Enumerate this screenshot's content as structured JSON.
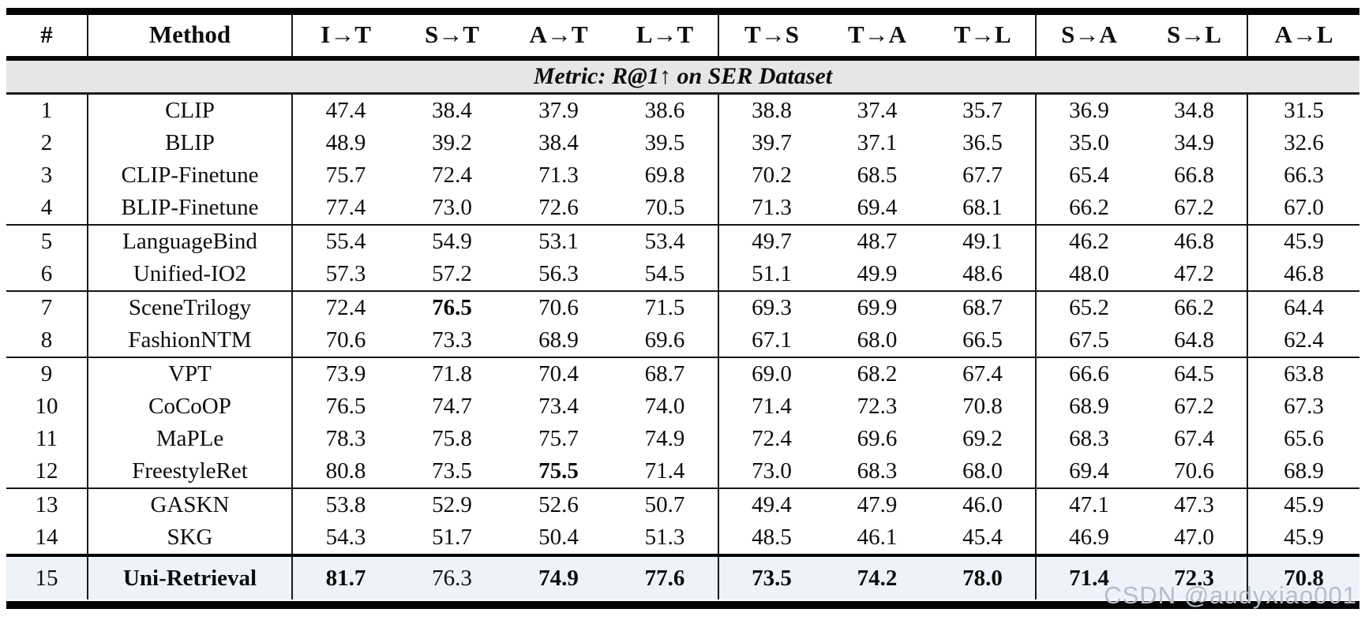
{
  "table": {
    "columns": [
      "#",
      "Method",
      "I→T",
      "S→T",
      "A→T",
      "L→T",
      "T→S",
      "T→A",
      "T→L",
      "S→A",
      "S→L",
      "A→L"
    ],
    "metric_caption": "Metric: R@1↑ on SER Dataset",
    "rows": [
      {
        "num": "1",
        "method": "CLIP",
        "values": [
          "47.4",
          "38.4",
          "37.9",
          "38.6",
          "38.8",
          "37.4",
          "35.7",
          "36.9",
          "34.8",
          "31.5"
        ],
        "bold_values": [],
        "method_bold": false,
        "sep_after": "none",
        "highlight": false
      },
      {
        "num": "2",
        "method": "BLIP",
        "values": [
          "48.9",
          "39.2",
          "38.4",
          "39.5",
          "39.7",
          "37.1",
          "36.5",
          "35.0",
          "34.9",
          "32.6"
        ],
        "bold_values": [],
        "method_bold": false,
        "sep_after": "none",
        "highlight": false
      },
      {
        "num": "3",
        "method": "CLIP-Finetune",
        "values": [
          "75.7",
          "72.4",
          "71.3",
          "69.8",
          "70.2",
          "68.5",
          "67.7",
          "65.4",
          "66.8",
          "66.3"
        ],
        "bold_values": [],
        "method_bold": false,
        "sep_after": "none",
        "highlight": false
      },
      {
        "num": "4",
        "method": "BLIP-Finetune",
        "values": [
          "77.4",
          "73.0",
          "72.6",
          "70.5",
          "71.3",
          "69.4",
          "68.1",
          "66.2",
          "67.2",
          "67.0"
        ],
        "bold_values": [],
        "method_bold": false,
        "sep_after": "thin",
        "highlight": false
      },
      {
        "num": "5",
        "method": "LanguageBind",
        "values": [
          "55.4",
          "54.9",
          "53.1",
          "53.4",
          "49.7",
          "48.7",
          "49.1",
          "46.2",
          "46.8",
          "45.9"
        ],
        "bold_values": [],
        "method_bold": false,
        "sep_after": "none",
        "highlight": false
      },
      {
        "num": "6",
        "method": "Unified-IO2",
        "values": [
          "57.3",
          "57.2",
          "56.3",
          "54.5",
          "51.1",
          "49.9",
          "48.6",
          "48.0",
          "47.2",
          "46.8"
        ],
        "bold_values": [],
        "method_bold": false,
        "sep_after": "thin",
        "highlight": false
      },
      {
        "num": "7",
        "method": "SceneTrilogy",
        "values": [
          "72.4",
          "76.5",
          "70.6",
          "71.5",
          "69.3",
          "69.9",
          "68.7",
          "65.2",
          "66.2",
          "64.4"
        ],
        "bold_values": [
          1
        ],
        "method_bold": false,
        "sep_after": "none",
        "highlight": false
      },
      {
        "num": "8",
        "method": "FashionNTM",
        "values": [
          "70.6",
          "73.3",
          "68.9",
          "69.6",
          "67.1",
          "68.0",
          "66.5",
          "67.5",
          "64.8",
          "62.4"
        ],
        "bold_values": [],
        "method_bold": false,
        "sep_after": "thin",
        "highlight": false
      },
      {
        "num": "9",
        "method": "VPT",
        "values": [
          "73.9",
          "71.8",
          "70.4",
          "68.7",
          "69.0",
          "68.2",
          "67.4",
          "66.6",
          "64.5",
          "63.8"
        ],
        "bold_values": [],
        "method_bold": false,
        "sep_after": "none",
        "highlight": false
      },
      {
        "num": "10",
        "method": "CoCoOP",
        "values": [
          "76.5",
          "74.7",
          "73.4",
          "74.0",
          "71.4",
          "72.3",
          "70.8",
          "68.9",
          "67.2",
          "67.3"
        ],
        "bold_values": [],
        "method_bold": false,
        "sep_after": "none",
        "highlight": false
      },
      {
        "num": "11",
        "method": "MaPLe",
        "values": [
          "78.3",
          "75.8",
          "75.7",
          "74.9",
          "72.4",
          "69.6",
          "69.2",
          "68.3",
          "67.4",
          "65.6"
        ],
        "bold_values": [],
        "method_bold": false,
        "sep_after": "none",
        "highlight": false
      },
      {
        "num": "12",
        "method": "FreestyleRet",
        "values": [
          "80.8",
          "73.5",
          "75.5",
          "71.4",
          "73.0",
          "68.3",
          "68.0",
          "69.4",
          "70.6",
          "68.9"
        ],
        "bold_values": [
          2
        ],
        "method_bold": false,
        "sep_after": "thin",
        "highlight": false
      },
      {
        "num": "13",
        "method": "GASKN",
        "values": [
          "53.8",
          "52.9",
          "52.6",
          "50.7",
          "49.4",
          "47.9",
          "46.0",
          "47.1",
          "47.3",
          "45.9"
        ],
        "bold_values": [],
        "method_bold": false,
        "sep_after": "none",
        "highlight": false
      },
      {
        "num": "14",
        "method": "SKG",
        "values": [
          "54.3",
          "51.7",
          "50.4",
          "51.3",
          "48.5",
          "46.1",
          "45.4",
          "46.9",
          "47.0",
          "45.9"
        ],
        "bold_values": [],
        "method_bold": false,
        "sep_after": "thick",
        "highlight": false
      },
      {
        "num": "15",
        "method": "Uni-Retrieval",
        "values": [
          "81.7",
          "76.3",
          "74.9",
          "77.6",
          "73.5",
          "74.2",
          "78.0",
          "71.4",
          "72.3",
          "70.8"
        ],
        "bold_values": [
          0,
          2,
          3,
          4,
          5,
          6,
          7,
          8,
          9
        ],
        "method_bold": true,
        "sep_after": "none",
        "highlight": true
      }
    ]
  },
  "watermark": "CSDN @audyxiao001",
  "colors": {
    "metric_row_bg": "#e6e6e6",
    "highlight_row_bg": "#edf2fb",
    "rule_color": "#050505",
    "watermark_color": "#b6bdc9"
  }
}
